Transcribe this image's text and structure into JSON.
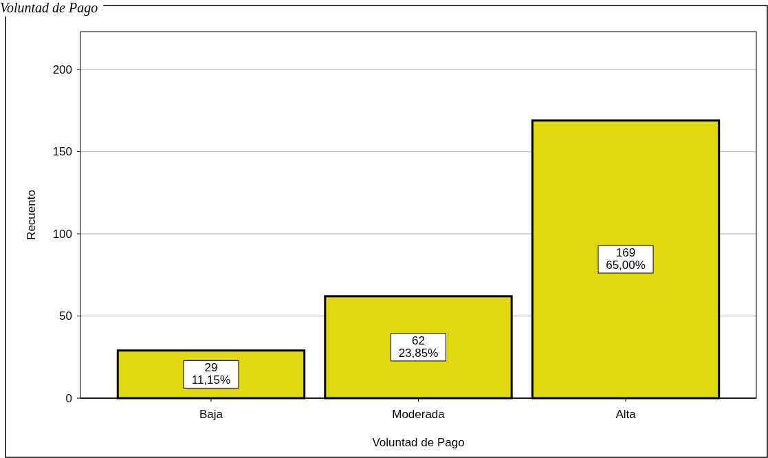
{
  "chart_data": {
    "type": "bar",
    "title": "Voluntad de Pago",
    "xlabel": "Voluntad de Pago",
    "ylabel": "Recuento",
    "categories": [
      "Baja",
      "Moderada",
      "Alta"
    ],
    "values": [
      29,
      62,
      169
    ],
    "value_labels": [
      "29\n11,15%",
      "62\n23,85%",
      "169\n65,00%"
    ],
    "color": "#e2d80f",
    "ylim": [
      0,
      223
    ],
    "yticks": [
      0,
      50,
      100,
      150,
      200
    ],
    "grid": "y"
  }
}
